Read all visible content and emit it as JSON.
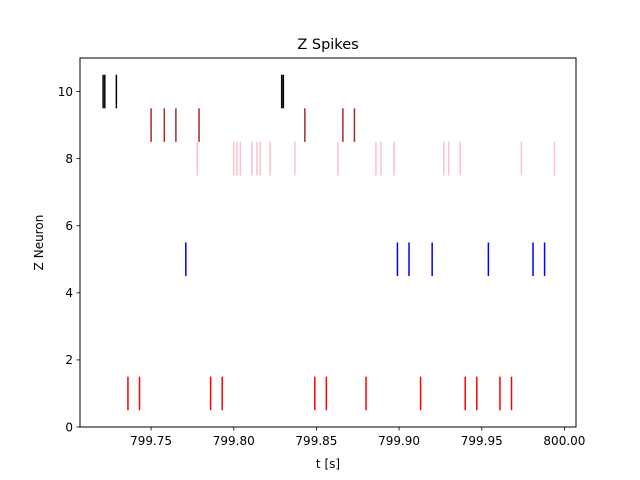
{
  "chart_data": {
    "type": "raster",
    "title": "Z Spikes",
    "xlabel": "t [s]",
    "ylabel": "Z Neuron",
    "xlim": [
      799.707,
      800.007
    ],
    "ylim": [
      0,
      11
    ],
    "xticks": [
      799.75,
      799.8,
      799.85,
      799.9,
      799.95,
      800.0
    ],
    "xtick_labels": [
      "799.75",
      "799.80",
      "799.85",
      "799.90",
      "799.95",
      "800.00"
    ],
    "yticks": [
      0,
      2,
      4,
      6,
      8,
      10
    ],
    "ytick_labels": [
      "0",
      "2",
      "4",
      "6",
      "8",
      "10"
    ],
    "grid": false,
    "series": [
      {
        "neuron": 1,
        "color": "#ff0000",
        "times": [
          799.736,
          799.743,
          799.786,
          799.793,
          799.849,
          799.856,
          799.88,
          799.913,
          799.94,
          799.947,
          799.961,
          799.968
        ]
      },
      {
        "neuron": 5,
        "color": "#0000ff",
        "times": [
          799.771,
          799.899,
          799.906,
          799.92,
          799.954,
          799.981,
          799.988
        ]
      },
      {
        "neuron": 8,
        "color": "#ffc0cb",
        "times": [
          799.778,
          799.8,
          799.802,
          799.804,
          799.811,
          799.814,
          799.816,
          799.822,
          799.837,
          799.863,
          799.886,
          799.889,
          799.897,
          799.927,
          799.93,
          799.937,
          799.974,
          799.994
        ]
      },
      {
        "neuron": 9,
        "color": "#a52a2a",
        "times": [
          799.75,
          799.758,
          799.765,
          799.779,
          799.843,
          799.866,
          799.873
        ]
      },
      {
        "neuron": 10,
        "color": "#000000",
        "times": [
          799.721,
          799.722,
          799.729,
          799.829,
          799.83
        ]
      }
    ]
  }
}
